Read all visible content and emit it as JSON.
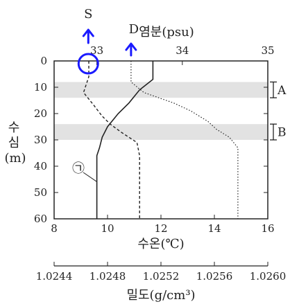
{
  "chart_data": {
    "type": "line",
    "top_axis": {
      "title": "염분(psu)",
      "range": [
        32.5,
        35
      ],
      "ticks": [
        "33",
        "34",
        "35"
      ]
    },
    "temp_axis": {
      "title": "수온(℃)",
      "range": [
        8,
        16
      ],
      "ticks": [
        "8",
        "10",
        "12",
        "14",
        "16"
      ]
    },
    "density_axis": {
      "title": "밀도(g/cm³)",
      "range": [
        1.0244,
        1.026
      ],
      "ticks": [
        "1.0244",
        "1.0248",
        "1.0252",
        "1.0256",
        "1.0260"
      ]
    },
    "depth_axis": {
      "title_main": "수심",
      "title_unit": "(m)",
      "range": [
        0,
        60
      ],
      "ticks": [
        "0",
        "10",
        "20",
        "30",
        "40",
        "50",
        "60"
      ]
    },
    "bands": [
      {
        "label": "A",
        "depth": [
          8,
          14
        ]
      },
      {
        "label": "B",
        "depth": [
          24,
          30
        ]
      }
    ],
    "curve_label": "㉠",
    "series": [
      {
        "axis": "temperature",
        "style": "solid",
        "points": [
          [
            11.7,
            0
          ],
          [
            11.7,
            7
          ],
          [
            11.2,
            11
          ],
          [
            10.8,
            16
          ],
          [
            10.4,
            20
          ],
          [
            10.0,
            25
          ],
          [
            9.8,
            29
          ],
          [
            9.7,
            33
          ],
          [
            9.6,
            36
          ],
          [
            9.6,
            60
          ]
        ]
      },
      {
        "axis": "salinity",
        "style": "dotted",
        "points": [
          [
            33.4,
            0
          ],
          [
            33.4,
            8
          ],
          [
            33.55,
            12
          ],
          [
            33.9,
            16
          ],
          [
            34.1,
            19
          ],
          [
            34.3,
            23
          ],
          [
            34.4,
            26
          ],
          [
            34.55,
            29
          ],
          [
            34.65,
            33
          ],
          [
            34.65,
            36
          ],
          [
            34.65,
            60
          ]
        ]
      },
      {
        "axis": "density",
        "style": "dashed",
        "points": [
          [
            1.02466,
            0
          ],
          [
            1.02466,
            6
          ],
          [
            1.02462,
            12
          ],
          [
            1.0247,
            17
          ],
          [
            1.02476,
            21
          ],
          [
            1.02482,
            24
          ],
          [
            1.0249,
            27
          ],
          [
            1.02502,
            31
          ],
          [
            1.02504,
            36
          ],
          [
            1.02504,
            60
          ]
        ]
      }
    ],
    "annotations": {
      "above_circle": "S",
      "above_salinity_curve": "D"
    },
    "grid": false
  }
}
